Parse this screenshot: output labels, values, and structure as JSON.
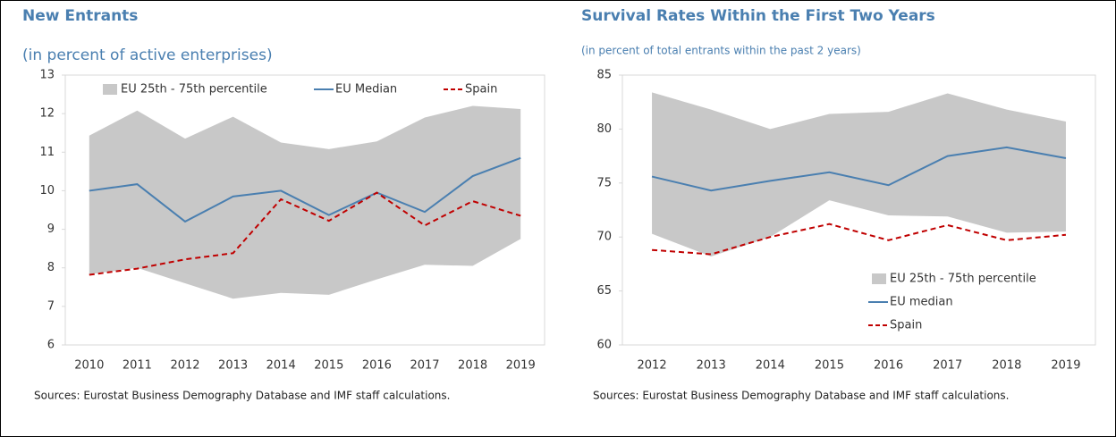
{
  "chart_data": [
    {
      "type": "line",
      "title": "New Entrants",
      "subtitle": "(in percent of active enterprises)",
      "note": "Sources: Eurostat Business Demography Database and IMF staff calculations.",
      "categories": [
        "2010",
        "2011",
        "2012",
        "2013",
        "2014",
        "2015",
        "2016",
        "2017",
        "2018",
        "2019"
      ],
      "ylim": [
        6,
        13
      ],
      "yticks": [
        6,
        7,
        8,
        9,
        10,
        11,
        12,
        13
      ],
      "legend": "top",
      "band": {
        "name": "EU 25th - 75th percentile",
        "color": "#c8c8c8",
        "upper": [
          11.43,
          12.08,
          11.35,
          11.92,
          11.25,
          11.08,
          11.28,
          11.9,
          12.2,
          12.12
        ],
        "lower": [
          7.83,
          8.0,
          7.6,
          7.2,
          7.35,
          7.3,
          7.7,
          8.08,
          8.05,
          8.75
        ]
      },
      "series": [
        {
          "name": "EU Median",
          "color": "#4a7fb0",
          "dashed": false,
          "values": [
            10.0,
            10.17,
            9.2,
            9.85,
            10.0,
            9.37,
            9.95,
            9.45,
            10.38,
            10.85
          ]
        },
        {
          "name": "Spain",
          "color": "#c00000",
          "dashed": true,
          "values": [
            7.82,
            7.98,
            8.22,
            8.38,
            9.78,
            9.22,
            9.95,
            9.1,
            9.73,
            9.35
          ]
        }
      ]
    },
    {
      "type": "line",
      "title": "Survival Rates Within the First Two Years",
      "subtitle": "(in percent of total entrants within the past 2 years)",
      "note": "Sources: Eurostat Business Demography Database and IMF staff calculations.",
      "categories": [
        "2012",
        "2013",
        "2014",
        "2015",
        "2016",
        "2017",
        "2018",
        "2019"
      ],
      "ylim": [
        60,
        85
      ],
      "yticks": [
        60,
        65,
        70,
        75,
        80,
        85
      ],
      "legend": "lower right",
      "band": {
        "name": "EU 25th - 75th percentile",
        "color": "#c8c8c8",
        "upper": [
          83.4,
          81.8,
          80.0,
          81.4,
          81.6,
          83.3,
          81.8,
          80.7
        ],
        "lower": [
          70.3,
          68.2,
          70.0,
          73.4,
          72.0,
          71.9,
          70.4,
          70.5
        ]
      },
      "series": [
        {
          "name": "EU median",
          "color": "#4a7fb0",
          "dashed": false,
          "values": [
            75.6,
            74.3,
            75.2,
            76.0,
            74.8,
            77.5,
            78.3,
            77.3
          ]
        },
        {
          "name": "Spain",
          "color": "#c00000",
          "dashed": true,
          "values": [
            68.8,
            68.4,
            70.0,
            71.2,
            69.7,
            71.1,
            69.7,
            70.2
          ]
        }
      ]
    }
  ]
}
